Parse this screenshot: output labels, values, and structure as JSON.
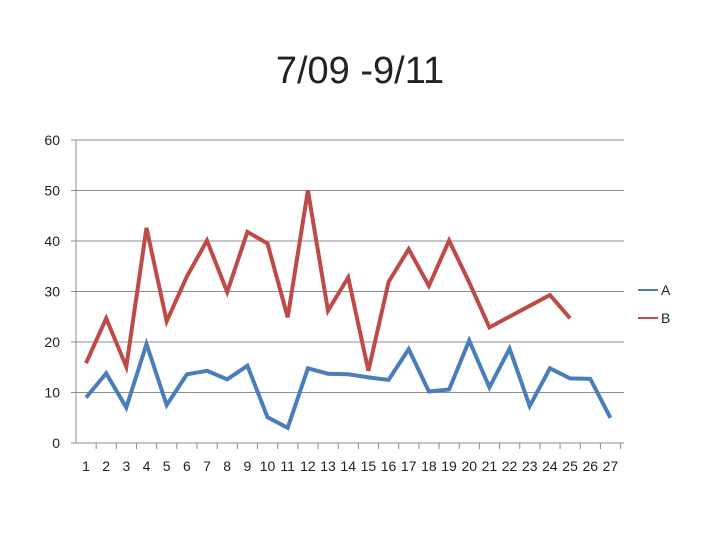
{
  "chart_data": {
    "type": "line",
    "title": "7/09 -9/11",
    "xlabel": "",
    "ylabel": "",
    "ylim": [
      0,
      60
    ],
    "yticks": [
      0,
      10,
      20,
      30,
      40,
      50,
      60
    ],
    "x": [
      "1",
      "2",
      "3",
      "4",
      "5",
      "6",
      "7",
      "8",
      "9",
      "10",
      "11",
      "12",
      "13",
      "14",
      "15",
      "16",
      "17",
      "18",
      "19",
      "20",
      "21",
      "22",
      "23",
      "24",
      "25",
      "26",
      "27"
    ],
    "grid": true,
    "legend": "right",
    "series": [
      {
        "name": "A",
        "color": "#4a7ebb",
        "values": [
          9,
          13.8,
          7,
          19.6,
          7.5,
          13.6,
          14.3,
          12.6,
          15.3,
          5.1,
          3,
          14.8,
          13.7,
          13.6,
          13,
          12.5,
          18.6,
          10.2,
          10.6,
          20.3,
          11,
          18.7,
          7.3,
          14.8,
          12.8,
          12.7,
          5
        ]
      },
      {
        "name": "B",
        "color": "#be4b48",
        "values": [
          15.8,
          24.7,
          15.1,
          42.6,
          24.1,
          33,
          40.1,
          29.9,
          41.8,
          39.5,
          24.9,
          50,
          26.2,
          32.8,
          14.3,
          31.9,
          38.4,
          31.1,
          40.1,
          31.8,
          22.9,
          null,
          null,
          29.3,
          24.7,
          null,
          null
        ]
      }
    ]
  }
}
